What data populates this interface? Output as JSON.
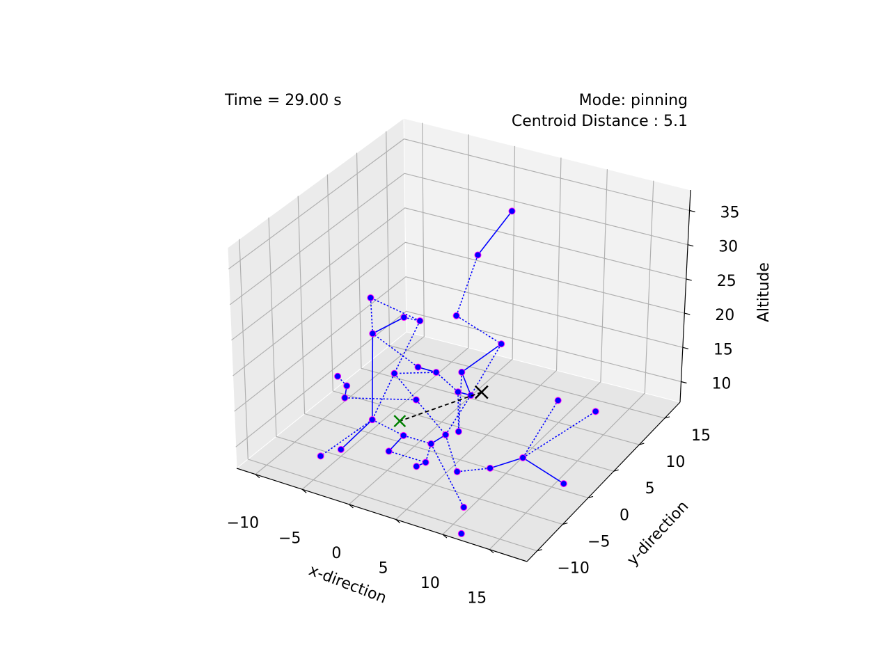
{
  "annotations": {
    "time": "Time = 29.00 s",
    "mode": "Mode: pinning",
    "centroid": "Centroid Distance : 5.1"
  },
  "axes": {
    "xlabel": "x-direction",
    "ylabel": "y-direction",
    "zlabel": "Altitude",
    "x_ticks": [
      "−10",
      "−5",
      "0",
      "5",
      "10",
      "15"
    ],
    "y_ticks": [
      "−10",
      "−5",
      "0",
      "5",
      "10",
      "15"
    ],
    "z_ticks": [
      "10",
      "15",
      "20",
      "25",
      "30",
      "35"
    ]
  },
  "chart_data": {
    "type": "scatter",
    "title": "",
    "xlabel": "x-direction",
    "ylabel": "y-direction",
    "zlabel": "Altitude",
    "xlim": [
      -12,
      19
    ],
    "ylim": [
      -12,
      18
    ],
    "zlim": [
      7,
      38
    ],
    "grid": true,
    "colors": {
      "agents": "#0000ff",
      "agent_edge": "#ff00ff",
      "target": "#000000",
      "centroid": "#008000"
    },
    "agents": [
      [
        6,
        8,
        38
      ],
      [
        4,
        5,
        33
      ],
      [
        4,
        1,
        27
      ],
      [
        -3,
        6,
        20
      ],
      [
        -6,
        2,
        25
      ],
      [
        -7,
        4,
        18
      ],
      [
        -6,
        8,
        18
      ],
      [
        4,
        2,
        18
      ],
      [
        6,
        6,
        20
      ],
      [
        6,
        -2,
        13
      ],
      [
        -2,
        4,
        15
      ],
      [
        0,
        4,
        15
      ],
      [
        -4,
        3,
        14
      ],
      [
        3,
        3,
        14
      ],
      [
        5,
        2,
        15
      ],
      [
        -1,
        2,
        12
      ],
      [
        -7,
        -1,
        12
      ],
      [
        -8,
        1,
        12
      ],
      [
        -9,
        1,
        13
      ],
      [
        4,
        -1,
        11
      ],
      [
        -4,
        -1,
        10
      ],
      [
        0,
        -2,
        10
      ],
      [
        3,
        -2,
        10
      ],
      [
        -1,
        -3,
        8
      ],
      [
        3,
        -3,
        8
      ],
      [
        2,
        -3,
        7
      ],
      [
        -6,
        -7,
        8
      ],
      [
        -5,
        -5,
        8
      ],
      [
        7,
        -4,
        9
      ],
      [
        10,
        -3,
        10
      ],
      [
        10,
        -8,
        8
      ],
      [
        13,
        -2,
        12
      ],
      [
        14,
        3,
        17
      ],
      [
        17,
        5,
        15
      ],
      [
        18,
        -3,
        11
      ],
      [
        12,
        -12,
        8
      ]
    ],
    "edges": [
      [
        0,
        1
      ],
      [
        1,
        2
      ],
      [
        2,
        8
      ],
      [
        8,
        7
      ],
      [
        3,
        4
      ],
      [
        4,
        5
      ],
      [
        5,
        6
      ],
      [
        6,
        3
      ],
      [
        7,
        9
      ],
      [
        7,
        14
      ],
      [
        8,
        14
      ],
      [
        9,
        13
      ],
      [
        10,
        11
      ],
      [
        11,
        12
      ],
      [
        11,
        13
      ],
      [
        13,
        14
      ],
      [
        12,
        15
      ],
      [
        15,
        16
      ],
      [
        16,
        17
      ],
      [
        17,
        18
      ],
      [
        15,
        19
      ],
      [
        19,
        22
      ],
      [
        20,
        21
      ],
      [
        21,
        22
      ],
      [
        21,
        23
      ],
      [
        23,
        24
      ],
      [
        22,
        24
      ],
      [
        24,
        25
      ],
      [
        19,
        28
      ],
      [
        28,
        29
      ],
      [
        29,
        31
      ],
      [
        31,
        32
      ],
      [
        31,
        33
      ],
      [
        31,
        34
      ],
      [
        22,
        30
      ],
      [
        20,
        26
      ],
      [
        20,
        27
      ],
      [
        12,
        20
      ],
      [
        10,
        5
      ],
      [
        5,
        20
      ],
      [
        14,
        19
      ],
      [
        3,
        12
      ]
    ],
    "target": [
      5,
      4,
      14
    ],
    "centroid": [
      -1,
      -1,
      11
    ],
    "centroid_distance": 5.1,
    "time_s": 29.0,
    "mode": "pinning"
  }
}
